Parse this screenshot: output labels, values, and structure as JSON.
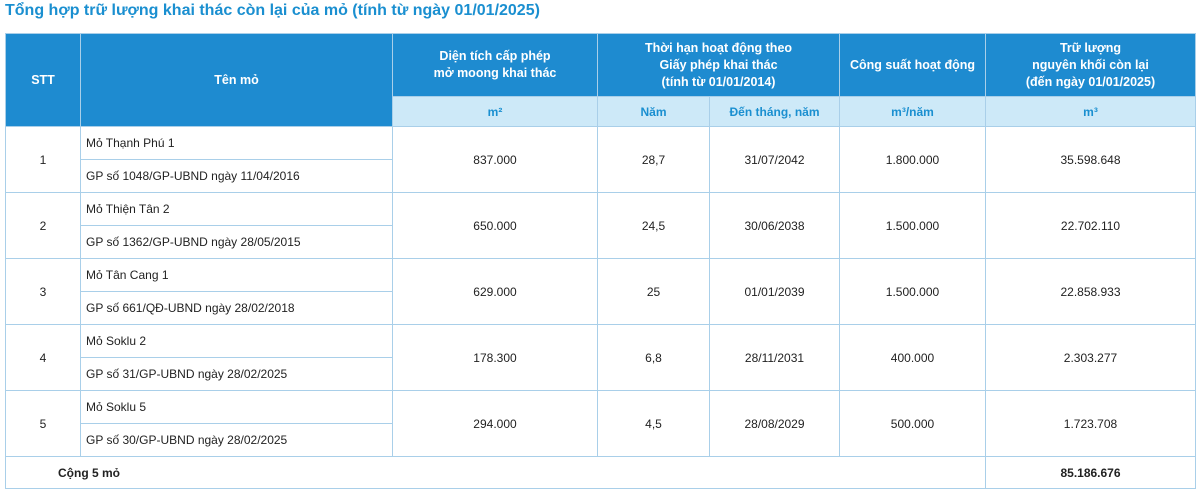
{
  "header": {
    "title": "Tổng hợp trữ lượng khai thác còn lại của mỏ (tính từ ngày 01/01/2025)"
  },
  "table": {
    "head": {
      "stt": "STT",
      "name": "Tên mỏ",
      "area": [
        "Diện tích cấp phép",
        "mở moong khai thác"
      ],
      "duration": [
        "Thời hạn hoạt động theo",
        "Giấy phép khai thác",
        "(tính từ 01/01/2014)"
      ],
      "capacity": [
        "Công suất hoạt động"
      ],
      "reserve": [
        "Trữ lượng",
        "nguyên khối còn lại",
        "(đến ngày 01/01/2025)"
      ]
    },
    "units": [
      "m²",
      "Năm",
      "Đến tháng, năm",
      "m³/năm",
      "m³"
    ],
    "rows": [
      {
        "stt": "1",
        "name": "Mỏ Thạnh Phú 1",
        "permit": "GP số 1048/GP-UBND ngày 11/04/2016",
        "area": "837.000",
        "years": "28,7",
        "until": "31/07/2042",
        "capacity": "1.800.000",
        "reserve": "35.598.648"
      },
      {
        "stt": "2",
        "name": "Mỏ Thiện Tân 2",
        "permit": "GP số 1362/GP-UBND ngày 28/05/2015",
        "area": "650.000",
        "years": "24,5",
        "until": "30/06/2038",
        "capacity": "1.500.000",
        "reserve": "22.702.110"
      },
      {
        "stt": "3",
        "name": "Mỏ Tân Cang 1",
        "permit": "GP số 661/QĐ-UBND ngày 28/02/2018",
        "area": "629.000",
        "years": "25",
        "until": "01/01/2039",
        "capacity": "1.500.000",
        "reserve": "22.858.933"
      },
      {
        "stt": "4",
        "name": "Mỏ Soklu 2",
        "permit": "GP số 31/GP-UBND ngày 28/02/2025",
        "area": "178.300",
        "years": "6,8",
        "until": "28/11/2031",
        "capacity": "400.000",
        "reserve": "2.303.277"
      },
      {
        "stt": "5",
        "name": "Mỏ Soklu 5",
        "permit": "GP số 30/GP-UBND ngày 28/02/2025",
        "area": "294.000",
        "years": "4,5",
        "until": "28/08/2029",
        "capacity": "500.000",
        "reserve": "1.723.708"
      }
    ],
    "total": {
      "label": "Cộng 5 mỏ",
      "value": "85.186.676"
    }
  }
}
